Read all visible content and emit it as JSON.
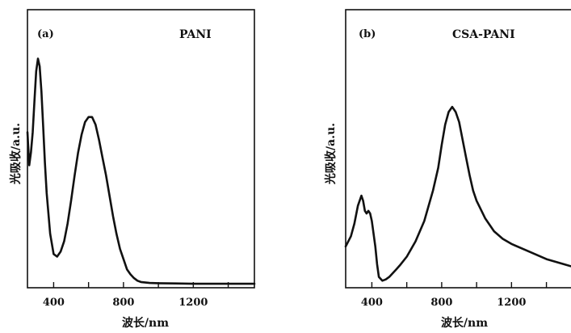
{
  "chart_data": [
    {
      "type": "line",
      "panel_label": "(a)",
      "legend": "PANI",
      "xlabel": "波长/nm",
      "ylabel": "光吸收/a.u.",
      "xlim": [
        250,
        1550
      ],
      "ylim": [
        0,
        1
      ],
      "xticks": [
        400,
        800,
        1200
      ],
      "minor_xticks": [
        600,
        1000,
        1400
      ],
      "grid": false,
      "series": [
        {
          "x": [
            250,
            260,
            270,
            280,
            290,
            300,
            310,
            320,
            330,
            340,
            350,
            360,
            380,
            400,
            420,
            440,
            460,
            480,
            500,
            520,
            540,
            560,
            580,
            600,
            620,
            640,
            660,
            680,
            700,
            720,
            740,
            760,
            780,
            800,
            820,
            840,
            860,
            880,
            900,
            950,
            1000,
            1100,
            1200,
            1300,
            1400,
            1500,
            1550
          ],
          "y": [
            0.6,
            0.47,
            0.52,
            0.6,
            0.72,
            0.84,
            0.89,
            0.86,
            0.76,
            0.62,
            0.48,
            0.36,
            0.2,
            0.12,
            0.11,
            0.13,
            0.17,
            0.24,
            0.33,
            0.43,
            0.52,
            0.59,
            0.64,
            0.66,
            0.66,
            0.63,
            0.57,
            0.5,
            0.43,
            0.35,
            0.27,
            0.2,
            0.14,
            0.1,
            0.06,
            0.04,
            0.025,
            0.015,
            0.01,
            0.006,
            0.005,
            0.004,
            0.003,
            0.003,
            0.003,
            0.003,
            0.003
          ]
        }
      ]
    },
    {
      "type": "line",
      "panel_label": "(b)",
      "legend": "CSA-PANI",
      "xlabel": "波长/nm",
      "ylabel": "光吸收/a.u.",
      "xlim": [
        250,
        1550
      ],
      "ylim": [
        0,
        1
      ],
      "xticks": [
        400,
        800,
        1200
      ],
      "minor_xticks": [
        600,
        1000,
        1400
      ],
      "grid": false,
      "series": [
        {
          "x": [
            250,
            280,
            300,
            320,
            340,
            350,
            360,
            370,
            380,
            390,
            400,
            420,
            430,
            440,
            460,
            480,
            500,
            520,
            540,
            560,
            600,
            650,
            700,
            750,
            780,
            800,
            820,
            840,
            860,
            880,
            900,
            920,
            940,
            960,
            980,
            1000,
            1050,
            1100,
            1150,
            1200,
            1300,
            1400,
            1500,
            1550
          ],
          "y": [
            0.15,
            0.19,
            0.24,
            0.31,
            0.35,
            0.33,
            0.29,
            0.28,
            0.29,
            0.28,
            0.25,
            0.15,
            0.08,
            0.03,
            0.015,
            0.02,
            0.03,
            0.045,
            0.06,
            0.075,
            0.11,
            0.17,
            0.25,
            0.37,
            0.46,
            0.55,
            0.63,
            0.68,
            0.7,
            0.68,
            0.64,
            0.57,
            0.5,
            0.43,
            0.37,
            0.33,
            0.26,
            0.21,
            0.18,
            0.16,
            0.13,
            0.1,
            0.08,
            0.07
          ]
        }
      ]
    }
  ]
}
